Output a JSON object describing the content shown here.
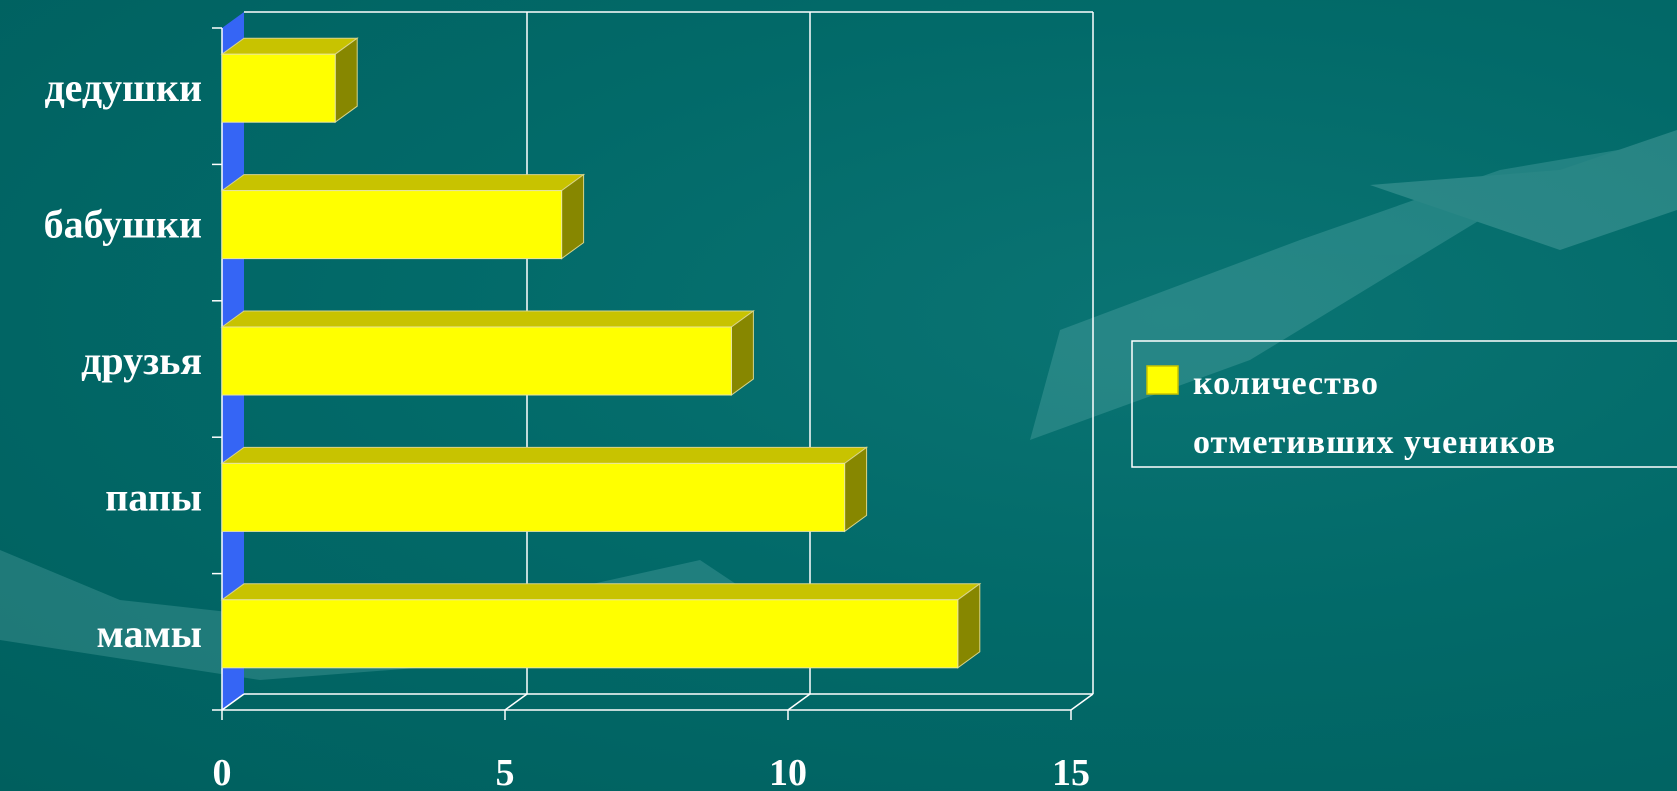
{
  "chart_data": {
    "type": "bar",
    "orientation": "horizontal",
    "categories": [
      "мамы",
      "папы",
      "друзья",
      "бабушки",
      "дедушки"
    ],
    "series": [
      {
        "name": "количество отметивших учеников",
        "values": [
          13,
          11,
          9,
          6,
          2
        ]
      }
    ],
    "x_ticks": [
      "0",
      "5",
      "10",
      "15"
    ],
    "xlim": [
      0,
      15
    ],
    "grid": true,
    "legend_position": "right",
    "legend": {
      "line1": "количество",
      "line2": "отметивших учеников"
    },
    "colors": {
      "bar_face": "#ffff00",
      "bar_top": "#c8c300",
      "bar_side": "#878700",
      "floor": "#3565f5",
      "background": "#016867",
      "grid": "#ffffff"
    },
    "title": "",
    "xlabel": "",
    "ylabel": ""
  }
}
